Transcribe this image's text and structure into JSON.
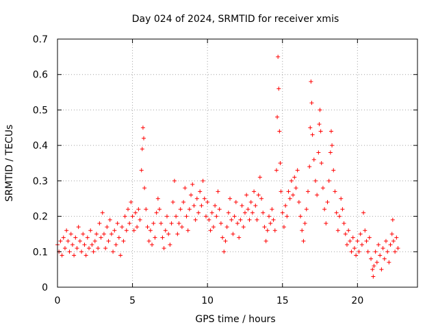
{
  "chart_data": {
    "type": "scatter",
    "title": "Day 024 of 2024, SRMTID for receiver xmis",
    "xlabel": "GPS time / hours",
    "ylabel": "SRMTID / TECUs",
    "xlim": [
      0,
      24
    ],
    "ylim": [
      0,
      0.7
    ],
    "xticks": [
      0,
      5,
      10,
      15,
      20
    ],
    "yticks": [
      0,
      0.1,
      0.2,
      0.3,
      0.4,
      0.5,
      0.6,
      0.7
    ],
    "xtick_labels": [
      "0",
      "5",
      "10",
      "15",
      "20"
    ],
    "ytick_labels": [
      "0",
      "0.1",
      "0.2",
      "0.3",
      "0.4",
      "0.5",
      "0.6",
      "0.7"
    ],
    "grid": true,
    "marker": "+",
    "marker_color": "#ff0000",
    "series": [
      {
        "name": "SRMTID",
        "points": [
          [
            0.0,
            0.12
          ],
          [
            0.1,
            0.1
          ],
          [
            0.2,
            0.13
          ],
          [
            0.3,
            0.09
          ],
          [
            0.4,
            0.14
          ],
          [
            0.5,
            0.11
          ],
          [
            0.6,
            0.16
          ],
          [
            0.7,
            0.13
          ],
          [
            0.8,
            0.1
          ],
          [
            0.9,
            0.15
          ],
          [
            1.0,
            0.12
          ],
          [
            1.1,
            0.09
          ],
          [
            1.2,
            0.14
          ],
          [
            1.3,
            0.11
          ],
          [
            1.4,
            0.17
          ],
          [
            1.5,
            0.13
          ],
          [
            1.6,
            0.1
          ],
          [
            1.7,
            0.15
          ],
          [
            1.8,
            0.12
          ],
          [
            1.9,
            0.09
          ],
          [
            2.0,
            0.14
          ],
          [
            2.1,
            0.11
          ],
          [
            2.2,
            0.16
          ],
          [
            2.3,
            0.12
          ],
          [
            2.4,
            0.1
          ],
          [
            2.5,
            0.13
          ],
          [
            2.6,
            0.15
          ],
          [
            2.7,
            0.11
          ],
          [
            2.8,
            0.18
          ],
          [
            2.9,
            0.14
          ],
          [
            3.0,
            0.21
          ],
          [
            3.1,
            0.15
          ],
          [
            3.2,
            0.11
          ],
          [
            3.3,
            0.17
          ],
          [
            3.4,
            0.13
          ],
          [
            3.5,
            0.19
          ],
          [
            3.6,
            0.15
          ],
          [
            3.7,
            0.1
          ],
          [
            3.8,
            0.16
          ],
          [
            3.9,
            0.12
          ],
          [
            4.0,
            0.18
          ],
          [
            4.1,
            0.14
          ],
          [
            4.2,
            0.09
          ],
          [
            4.3,
            0.17
          ],
          [
            4.4,
            0.13
          ],
          [
            4.5,
            0.2
          ],
          [
            4.6,
            0.16
          ],
          [
            4.7,
            0.22
          ],
          [
            4.8,
            0.18
          ],
          [
            4.9,
            0.24
          ],
          [
            5.0,
            0.2
          ],
          [
            5.1,
            0.16
          ],
          [
            5.2,
            0.21
          ],
          [
            5.3,
            0.17
          ],
          [
            5.4,
            0.22
          ],
          [
            5.5,
            0.19
          ],
          [
            5.6,
            0.33
          ],
          [
            5.65,
            0.39
          ],
          [
            5.7,
            0.45
          ],
          [
            5.75,
            0.42
          ],
          [
            5.8,
            0.28
          ],
          [
            5.9,
            0.22
          ],
          [
            6.0,
            0.17
          ],
          [
            6.1,
            0.13
          ],
          [
            6.2,
            0.16
          ],
          [
            6.3,
            0.12
          ],
          [
            6.4,
            0.18
          ],
          [
            6.5,
            0.14
          ],
          [
            6.6,
            0.21
          ],
          [
            6.7,
            0.25
          ],
          [
            6.8,
            0.22
          ],
          [
            6.9,
            0.18
          ],
          [
            7.0,
            0.14
          ],
          [
            7.1,
            0.11
          ],
          [
            7.2,
            0.16
          ],
          [
            7.3,
            0.2
          ],
          [
            7.4,
            0.15
          ],
          [
            7.5,
            0.12
          ],
          [
            7.6,
            0.18
          ],
          [
            7.7,
            0.24
          ],
          [
            7.8,
            0.3
          ],
          [
            7.9,
            0.2
          ],
          [
            8.0,
            0.15
          ],
          [
            8.1,
            0.18
          ],
          [
            8.2,
            0.22
          ],
          [
            8.3,
            0.17
          ],
          [
            8.4,
            0.24
          ],
          [
            8.5,
            0.28
          ],
          [
            8.6,
            0.2
          ],
          [
            8.7,
            0.16
          ],
          [
            8.8,
            0.22
          ],
          [
            8.9,
            0.26
          ],
          [
            9.0,
            0.29
          ],
          [
            9.1,
            0.23
          ],
          [
            9.2,
            0.19
          ],
          [
            9.3,
            0.25
          ],
          [
            9.4,
            0.21
          ],
          [
            9.5,
            0.27
          ],
          [
            9.6,
            0.23
          ],
          [
            9.7,
            0.3
          ],
          [
            9.8,
            0.25
          ],
          [
            9.9,
            0.2
          ],
          [
            10.0,
            0.24
          ],
          [
            10.1,
            0.19
          ],
          [
            10.2,
            0.16
          ],
          [
            10.3,
            0.21
          ],
          [
            10.4,
            0.17
          ],
          [
            10.5,
            0.23
          ],
          [
            10.6,
            0.2
          ],
          [
            10.7,
            0.27
          ],
          [
            10.8,
            0.22
          ],
          [
            10.9,
            0.18
          ],
          [
            11.0,
            0.14
          ],
          [
            11.1,
            0.1
          ],
          [
            11.2,
            0.13
          ],
          [
            11.3,
            0.17
          ],
          [
            11.4,
            0.21
          ],
          [
            11.5,
            0.25
          ],
          [
            11.6,
            0.19
          ],
          [
            11.7,
            0.15
          ],
          [
            11.8,
            0.2
          ],
          [
            11.9,
            0.24
          ],
          [
            12.0,
            0.18
          ],
          [
            12.1,
            0.14
          ],
          [
            12.2,
            0.19
          ],
          [
            12.3,
            0.23
          ],
          [
            12.4,
            0.17
          ],
          [
            12.5,
            0.21
          ],
          [
            12.6,
            0.26
          ],
          [
            12.7,
            0.22
          ],
          [
            12.8,
            0.19
          ],
          [
            12.9,
            0.24
          ],
          [
            13.0,
            0.21
          ],
          [
            13.1,
            0.27
          ],
          [
            13.2,
            0.23
          ],
          [
            13.3,
            0.19
          ],
          [
            13.4,
            0.26
          ],
          [
            13.5,
            0.31
          ],
          [
            13.6,
            0.25
          ],
          [
            13.7,
            0.21
          ],
          [
            13.8,
            0.17
          ],
          [
            13.9,
            0.13
          ],
          [
            14.0,
            0.16
          ],
          [
            14.1,
            0.2
          ],
          [
            14.2,
            0.18
          ],
          [
            14.3,
            0.22
          ],
          [
            14.4,
            0.19
          ],
          [
            14.5,
            0.16
          ],
          [
            14.6,
            0.33
          ],
          [
            14.65,
            0.48
          ],
          [
            14.7,
            0.65
          ],
          [
            14.75,
            0.56
          ],
          [
            14.8,
            0.44
          ],
          [
            14.85,
            0.35
          ],
          [
            14.9,
            0.27
          ],
          [
            15.0,
            0.21
          ],
          [
            15.1,
            0.17
          ],
          [
            15.2,
            0.23
          ],
          [
            15.3,
            0.2
          ],
          [
            15.4,
            0.27
          ],
          [
            15.5,
            0.25
          ],
          [
            15.6,
            0.3
          ],
          [
            15.7,
            0.26
          ],
          [
            15.8,
            0.31
          ],
          [
            15.9,
            0.28
          ],
          [
            16.0,
            0.33
          ],
          [
            16.1,
            0.24
          ],
          [
            16.2,
            0.2
          ],
          [
            16.3,
            0.16
          ],
          [
            16.4,
            0.13
          ],
          [
            16.5,
            0.18
          ],
          [
            16.6,
            0.22
          ],
          [
            16.7,
            0.27
          ],
          [
            16.8,
            0.34
          ],
          [
            16.85,
            0.45
          ],
          [
            16.9,
            0.58
          ],
          [
            16.95,
            0.52
          ],
          [
            17.0,
            0.43
          ],
          [
            17.1,
            0.36
          ],
          [
            17.2,
            0.3
          ],
          [
            17.3,
            0.26
          ],
          [
            17.4,
            0.38
          ],
          [
            17.45,
            0.46
          ],
          [
            17.5,
            0.5
          ],
          [
            17.55,
            0.44
          ],
          [
            17.6,
            0.35
          ],
          [
            17.7,
            0.28
          ],
          [
            17.8,
            0.22
          ],
          [
            17.9,
            0.18
          ],
          [
            18.0,
            0.24
          ],
          [
            18.1,
            0.3
          ],
          [
            18.2,
            0.38
          ],
          [
            18.25,
            0.44
          ],
          [
            18.3,
            0.4
          ],
          [
            18.4,
            0.33
          ],
          [
            18.5,
            0.27
          ],
          [
            18.6,
            0.21
          ],
          [
            18.7,
            0.16
          ],
          [
            18.8,
            0.2
          ],
          [
            18.9,
            0.25
          ],
          [
            19.0,
            0.22
          ],
          [
            19.1,
            0.18
          ],
          [
            19.2,
            0.15
          ],
          [
            19.3,
            0.12
          ],
          [
            19.4,
            0.16
          ],
          [
            19.5,
            0.13
          ],
          [
            19.6,
            0.1
          ],
          [
            19.7,
            0.14
          ],
          [
            19.8,
            0.11
          ],
          [
            19.9,
            0.09
          ],
          [
            20.0,
            0.13
          ],
          [
            20.1,
            0.1
          ],
          [
            20.2,
            0.15
          ],
          [
            20.3,
            0.12
          ],
          [
            20.4,
            0.21
          ],
          [
            20.5,
            0.16
          ],
          [
            20.6,
            0.13
          ],
          [
            20.7,
            0.1
          ],
          [
            20.8,
            0.14
          ],
          [
            20.9,
            0.08
          ],
          [
            21.0,
            0.05
          ],
          [
            21.05,
            0.03
          ],
          [
            21.1,
            0.06
          ],
          [
            21.2,
            0.1
          ],
          [
            21.3,
            0.07
          ],
          [
            21.4,
            0.12
          ],
          [
            21.5,
            0.09
          ],
          [
            21.6,
            0.05
          ],
          [
            21.7,
            0.11
          ],
          [
            21.8,
            0.08
          ],
          [
            21.9,
            0.13
          ],
          [
            22.0,
            0.1
          ],
          [
            22.1,
            0.07
          ],
          [
            22.2,
            0.12
          ],
          [
            22.3,
            0.15
          ],
          [
            22.35,
            0.19
          ],
          [
            22.4,
            0.13
          ],
          [
            22.5,
            0.1
          ],
          [
            22.6,
            0.14
          ],
          [
            22.7,
            0.11
          ]
        ]
      }
    ]
  }
}
